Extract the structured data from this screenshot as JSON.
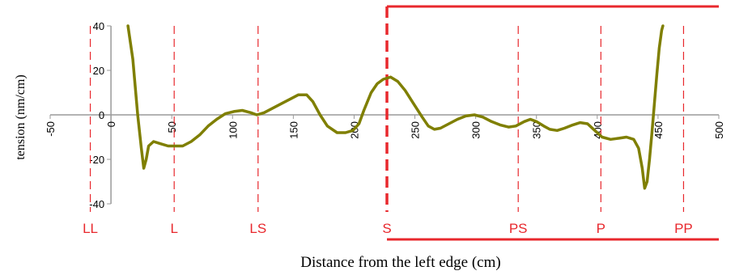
{
  "chart_data": {
    "type": "line",
    "title": "",
    "xlabel": "Distance from the left edge (cm)",
    "ylabel": "tension (nm/cm)",
    "xlim": [
      -50,
      500
    ],
    "ylim": [
      -40,
      40
    ],
    "x_ticks": [
      -50,
      0,
      50,
      100,
      150,
      200,
      250,
      300,
      350,
      400,
      450,
      500
    ],
    "y_ticks": [
      -40,
      -20,
      0,
      20,
      40
    ],
    "grid": false,
    "series": [
      {
        "color": "#7f7f00",
        "points": [
          [
            14,
            40
          ],
          [
            18,
            25
          ],
          [
            22,
            0
          ],
          [
            25,
            -15
          ],
          [
            27,
            -24
          ],
          [
            29,
            -20
          ],
          [
            31,
            -14
          ],
          [
            35,
            -12
          ],
          [
            41,
            -13
          ],
          [
            47,
            -14
          ],
          [
            54,
            -14
          ],
          [
            59,
            -14
          ],
          [
            66,
            -12
          ],
          [
            73,
            -9
          ],
          [
            80,
            -5
          ],
          [
            87,
            -2
          ],
          [
            94,
            0.5
          ],
          [
            101,
            1.5
          ],
          [
            108,
            2
          ],
          [
            115,
            1
          ],
          [
            120,
            0
          ],
          [
            126,
            1
          ],
          [
            133,
            3
          ],
          [
            140,
            5
          ],
          [
            147,
            7
          ],
          [
            154,
            9
          ],
          [
            161,
            9
          ],
          [
            166,
            6
          ],
          [
            172,
            0
          ],
          [
            178,
            -5
          ],
          [
            186,
            -8
          ],
          [
            193,
            -8
          ],
          [
            199,
            -7
          ],
          [
            204,
            -4
          ],
          [
            208,
            2
          ],
          [
            214,
            10
          ],
          [
            219,
            14
          ],
          [
            224,
            16
          ],
          [
            230,
            17
          ],
          [
            236,
            15
          ],
          [
            242,
            11
          ],
          [
            249,
            5
          ],
          [
            256,
            -1
          ],
          [
            261,
            -5
          ],
          [
            266,
            -6.5
          ],
          [
            271,
            -6
          ],
          [
            278,
            -4
          ],
          [
            285,
            -2
          ],
          [
            292,
            -0.5
          ],
          [
            299,
            0
          ],
          [
            306,
            -1
          ],
          [
            313,
            -3
          ],
          [
            320,
            -4.5
          ],
          [
            327,
            -5.5
          ],
          [
            333,
            -5
          ],
          [
            340,
            -3
          ],
          [
            345,
            -2
          ],
          [
            350,
            -3
          ],
          [
            356,
            -5
          ],
          [
            361,
            -6.5
          ],
          [
            367,
            -7
          ],
          [
            373,
            -6
          ],
          [
            380,
            -4.5
          ],
          [
            386,
            -3.5
          ],
          [
            392,
            -4
          ],
          [
            398,
            -7
          ],
          [
            404,
            -10
          ],
          [
            411,
            -11
          ],
          [
            418,
            -10.5
          ],
          [
            424,
            -10
          ],
          [
            430,
            -11
          ],
          [
            434,
            -15
          ],
          [
            437,
            -24
          ],
          [
            439,
            -33
          ],
          [
            441,
            -30
          ],
          [
            443,
            -20
          ],
          [
            445,
            -8
          ],
          [
            447,
            5
          ],
          [
            449,
            18
          ],
          [
            451,
            30
          ],
          [
            453,
            38
          ],
          [
            454,
            40
          ]
        ]
      }
    ],
    "vertical_markers": [
      {
        "label": "LL",
        "x": -17,
        "style": "dashed"
      },
      {
        "label": "L",
        "x": 52,
        "style": "dashed"
      },
      {
        "label": "LS",
        "x": 121,
        "style": "dashed"
      },
      {
        "label": "S",
        "x": 227,
        "style": "bold-dashed"
      },
      {
        "label": "PS",
        "x": 335,
        "style": "dashed"
      },
      {
        "label": "P",
        "x": 403,
        "style": "dashed"
      },
      {
        "label": "PP",
        "x": 471,
        "style": "dashed"
      }
    ],
    "highlight_range": {
      "from": "S",
      "color": "#e8282d"
    },
    "axis_color": "#9a9a9a",
    "marker_color": "#e8282d"
  }
}
